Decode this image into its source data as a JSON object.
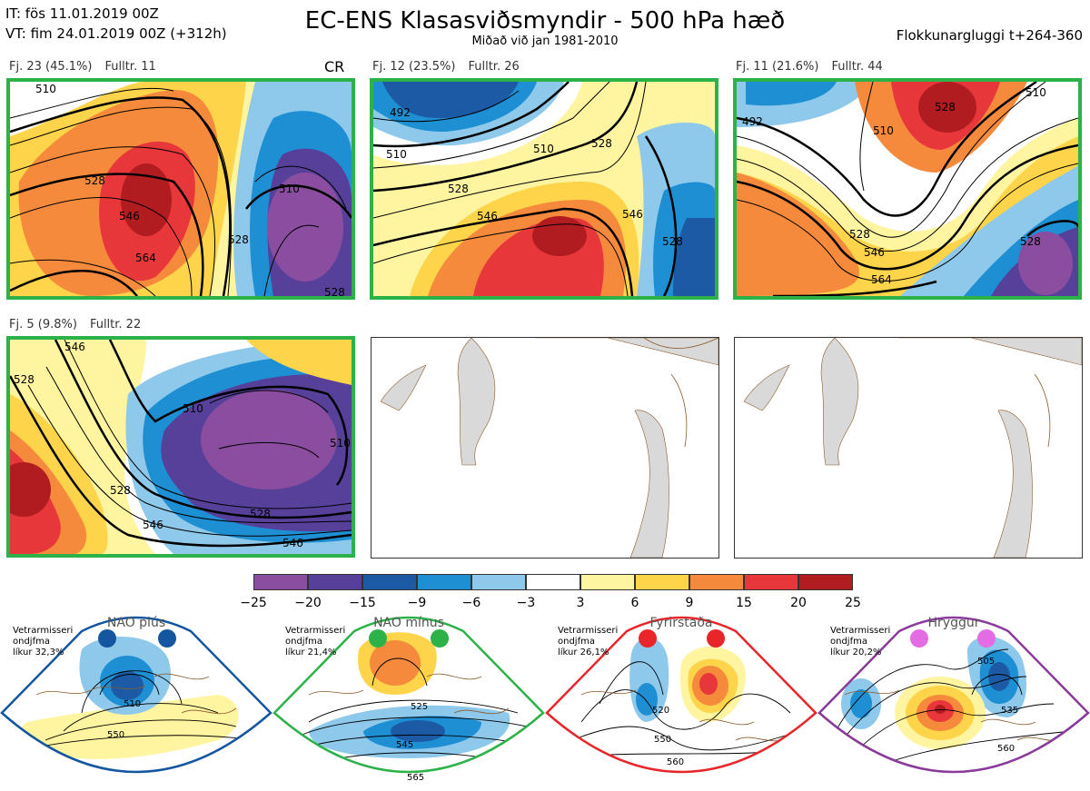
{
  "header": {
    "init_time": "IT: fös 11.01.2019 00Z",
    "valid_time": "VT: fim 24.01.2019 00Z  (+312h)",
    "title": "EC-ENS Klasasviðsmyndir - 500 hPa hæð",
    "subtitle": "Miðað við jan 1981-2010",
    "window": "Flokkunargluggi t+264-360"
  },
  "clusters": [
    {
      "label": "Fj. 23 (45.1%)",
      "rep": "Fulltr. 11",
      "tag": "CR",
      "contours": [
        "510",
        "528",
        "546",
        "564",
        "510",
        "528",
        "528"
      ]
    },
    {
      "label": "Fj. 12 (23.5%)",
      "rep": "Fulltr. 26",
      "contours": [
        "492",
        "510",
        "510",
        "528",
        "528",
        "546",
        "546",
        "528"
      ]
    },
    {
      "label": "Fj. 11 (21.6%)",
      "rep": "Fulltr. 44",
      "contours": [
        "492",
        "510",
        "510",
        "528",
        "528",
        "546",
        "564",
        "528"
      ]
    },
    {
      "label": "Fj. 5 (9.8%)",
      "rep": "Fulltr. 22",
      "contours": [
        "546",
        "528",
        "510",
        "510",
        "528",
        "546",
        "528",
        "546"
      ]
    }
  ],
  "colorbar": {
    "ticks": [
      "−25",
      "−20",
      "−15",
      "−9",
      "−6",
      "−3",
      "3",
      "6",
      "9",
      "15",
      "20",
      "25"
    ],
    "colors": [
      "#8a4da0",
      "#56409a",
      "#1d5aa6",
      "#1f8fd4",
      "#8ec9eb",
      "#ffffff",
      "#fff4a0",
      "#fdd44a",
      "#f58a3c",
      "#e8373a",
      "#b01c1f"
    ]
  },
  "regimes": [
    {
      "name": "NAO plús",
      "prob": [
        "Vetrarmisseri",
        "ondjfma",
        "líkur 32,3%"
      ],
      "dot_color": "#1456a0",
      "edge_color": "#1456a0",
      "contours": [
        "510",
        "550"
      ]
    },
    {
      "name": "NAO mínus",
      "prob": [
        "Vetrarmisseri",
        "ondjfma",
        "líkur 21,4%"
      ],
      "dot_color": "#2db24a",
      "edge_color": "#2db24a",
      "contours": [
        "525",
        "545",
        "565"
      ]
    },
    {
      "name": "Fyrirstaða",
      "prob": [
        "Vetrarmisseri",
        "ondjfma",
        "líkur 26,1%"
      ],
      "dot_color": "#e8262a",
      "edge_color": "#e8262a",
      "contours": [
        "520",
        "550",
        "560"
      ]
    },
    {
      "name": "Hryggur",
      "prob": [
        "Vetrarmisseri",
        "ondjfma",
        "líkur 20,2%"
      ],
      "dot_color": "#e36be3",
      "edge_color": "#8a3a9a",
      "contours": [
        "505",
        "535",
        "560"
      ]
    }
  ]
}
